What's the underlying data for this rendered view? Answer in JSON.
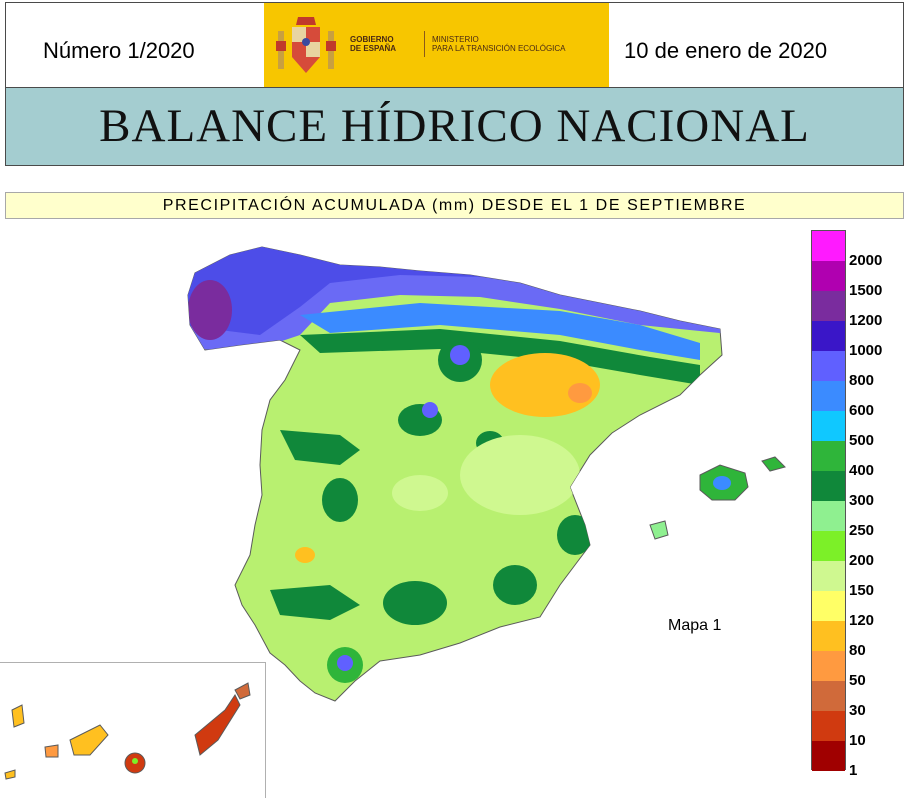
{
  "header": {
    "issue_number": "Número 1/2020",
    "date": "10 de enero de 2020",
    "logo": {
      "gov_line1": "GOBIERNO",
      "gov_line2": "DE ESPAÑA",
      "ministry_line1": "MINISTERIO",
      "ministry_line2": "PARA LA TRANSICIÓN ECOLÓGICA",
      "color": "#f7c600",
      "icon": "coat-of-arms-icon"
    }
  },
  "title": "BALANCE HÍDRICO NACIONAL",
  "subtitle": "PRECIPITACIÓN ACUMULADA (mm) DESDE EL 1 DE SEPTIEMBRE",
  "map": {
    "label": "Mapa 1",
    "regions": [
      "Peninsula",
      "Balearic Islands",
      "Canary Islands"
    ]
  },
  "legend": {
    "unit": "mm",
    "classes": [
      {
        "label": "2000",
        "color": "#ff1aff"
      },
      {
        "label": "1500",
        "color": "#b000b0"
      },
      {
        "label": "1200",
        "color": "#7a2c9e"
      },
      {
        "label": "1000",
        "color": "#3a16c8"
      },
      {
        "label": "800",
        "color": "#6060ff"
      },
      {
        "label": "600",
        "color": "#3b8bff"
      },
      {
        "label": "500",
        "color": "#10c8ff"
      },
      {
        "label": "400",
        "color": "#2fb53a"
      },
      {
        "label": "300",
        "color": "#10883a"
      },
      {
        "label": "250",
        "color": "#8ff090"
      },
      {
        "label": "200",
        "color": "#7cf028"
      },
      {
        "label": "150",
        "color": "#cff890"
      },
      {
        "label": "120",
        "color": "#ffff66"
      },
      {
        "label": "80",
        "color": "#ffc020"
      },
      {
        "label": "50",
        "color": "#ff9a40"
      },
      {
        "label": "30",
        "color": "#d06a3a"
      },
      {
        "label": "10",
        "color": "#d03a10"
      },
      {
        "label": "1",
        "color": "#a00000"
      }
    ]
  }
}
